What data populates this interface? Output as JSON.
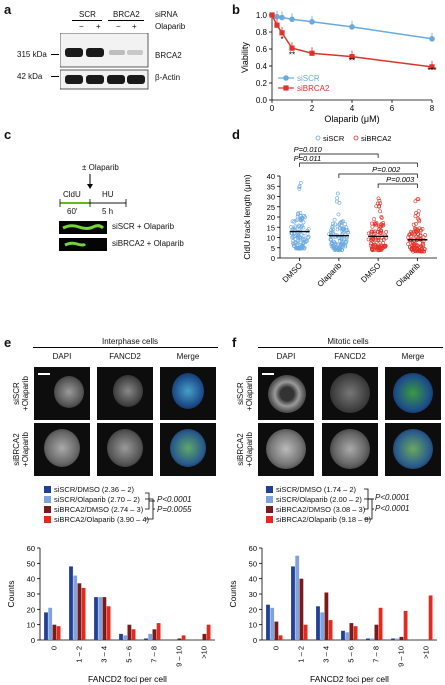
{
  "colors": {
    "siscr": "#6aa9df",
    "sibrca2": "#e0332a",
    "dark_blue": "#233f94",
    "light_blue": "#7fa3dd",
    "dark_red": "#7a1a1a",
    "red": "#e32a1f"
  },
  "panel_a": {
    "letter": "a",
    "col_labels": [
      "SCR",
      "BRCA2"
    ],
    "sirna_label": "siRNA",
    "olaparib_label": "Olaparib",
    "treatment_signs": [
      "−",
      "+",
      "−",
      "+"
    ],
    "size_markers": [
      "315 kDa",
      "42 kDa"
    ],
    "band_labels": [
      "BRCA2",
      "β-Actin"
    ]
  },
  "panel_b": {
    "letter": "b",
    "stars": [
      "*",
      "**",
      "**",
      "***"
    ]
  },
  "panel_c": {
    "letter": "c",
    "olaparib": "± Olaparib",
    "cldu": "CldU",
    "hu": "HU",
    "t1": "60′",
    "t2": "5 h",
    "row1": "siSCR + Olaparib",
    "row2": "siBRCA2 + Olaparib"
  },
  "panel_d": {
    "letter": "d",
    "p_values": [
      "P=0.010",
      "P=0.011",
      "P=0.002",
      "P=0.003"
    ]
  },
  "panel_e": {
    "letter": "e",
    "section_title": "Interphase cells",
    "col_headers": [
      "DAPI",
      "FANCD2",
      "Merge"
    ],
    "row_labels": [
      "siSCR\n+Olaparib",
      "siBRCA2\n+Olaparib"
    ],
    "legend": [
      "siSCR/DMSO (2.36 – 2)",
      "siSCR/Olaparib (2.70 – 2)",
      "siBRCA2/DMSO (2.74 – 3)",
      "siBRCA2/Olaparib (3.90 – 4)"
    ],
    "p1": "P<0.0001",
    "p2": "P=0.0055"
  },
  "panel_f": {
    "letter": "f",
    "section_title": "Mitotic cells",
    "col_headers": [
      "DAPI",
      "FANCD2",
      "Merge"
    ],
    "row_labels": [
      "siSCR\n+Olaparib",
      "siBRCA2\n+Olaparib"
    ],
    "legend": [
      "siSCR/DMSO (1.74 – 2)",
      "siSCR/Olaparib (2.00 – 2)",
      "siBRCA2/DMSO (3.08 – 3)",
      "siBRCA2/Olaparib (9.18 – 8)"
    ],
    "p1": "P<0.0001",
    "p2": "P<0.0001"
  },
  "chart_data": [
    {
      "type": "line",
      "xlabel": "Olaparib (μM)",
      "ylabel": "Viability",
      "xlim": [
        0,
        8
      ],
      "ylim": [
        0,
        1.0
      ],
      "xticks": [
        0,
        2,
        4,
        6,
        8
      ],
      "yticks": [
        0,
        0.2,
        0.4,
        0.6,
        0.8,
        1.0
      ],
      "series": [
        {
          "name": "siSCR",
          "x": [
            0,
            0.25,
            0.5,
            1,
            2,
            4,
            8
          ],
          "y": [
            1.0,
            0.98,
            0.97,
            0.95,
            0.92,
            0.86,
            0.72
          ]
        },
        {
          "name": "siBRCA2",
          "x": [
            0,
            0.25,
            0.5,
            1,
            2,
            4,
            8
          ],
          "y": [
            1.0,
            0.88,
            0.79,
            0.61,
            0.55,
            0.51,
            0.39
          ]
        }
      ],
      "legend_position": "bottom-left"
    },
    {
      "type": "scatter",
      "ylabel": "CldU track length (μm)",
      "ylim": [
        0,
        40
      ],
      "yticks": [
        0,
        5,
        10,
        15,
        20,
        25,
        30,
        35,
        40
      ],
      "categories": [
        "DMSO",
        "Olaparib",
        "DMSO",
        "Olaparib"
      ],
      "series": [
        {
          "name": "siSCR",
          "categories": [
            0,
            1
          ]
        },
        {
          "name": "siBRCA2",
          "categories": [
            2,
            3
          ]
        }
      ],
      "medians": [
        12.9,
        10.9,
        10.6,
        8.9
      ],
      "legend_position": "top"
    },
    {
      "type": "bar",
      "xlabel": "FANCD2 foci per cell",
      "ylabel": "Counts",
      "ylim": [
        0,
        60
      ],
      "yticks": [
        0,
        10,
        20,
        30,
        40,
        50,
        60
      ],
      "categories": [
        "0",
        "1 – 2",
        "3 – 4",
        "5 – 6",
        "7 – 8",
        "9 – 10",
        ">10"
      ],
      "series": [
        {
          "name": "siSCR/DMSO",
          "values": [
            18,
            48,
            28,
            4,
            1,
            0,
            0
          ]
        },
        {
          "name": "siSCR/Olaparib",
          "values": [
            21,
            42,
            28,
            3,
            4,
            0,
            0
          ]
        },
        {
          "name": "siBRCA2/DMSO",
          "values": [
            10,
            37,
            28,
            10,
            7,
            1,
            4
          ]
        },
        {
          "name": "siBRCA2/Olaparib",
          "values": [
            9,
            34,
            22,
            7,
            11,
            3,
            10
          ]
        }
      ]
    },
    {
      "type": "bar",
      "xlabel": "FANCD2 foci per cell",
      "ylabel": "Counts",
      "ylim": [
        0,
        60
      ],
      "yticks": [
        0,
        10,
        20,
        30,
        40,
        50,
        60
      ],
      "categories": [
        "0",
        "1 – 2",
        "3 – 4",
        "5 – 6",
        "7 – 8",
        "9 – 10",
        ">10"
      ],
      "series": [
        {
          "name": "siSCR/DMSO",
          "values": [
            23,
            48,
            22,
            6,
            1,
            1,
            0
          ]
        },
        {
          "name": "siSCR/Olaparib",
          "values": [
            21,
            55,
            18,
            5,
            1,
            1,
            0
          ]
        },
        {
          "name": "siBRCA2/DMSO",
          "values": [
            12,
            40,
            31,
            11,
            10,
            2,
            0
          ]
        },
        {
          "name": "siBRCA2/Olaparib",
          "values": [
            3,
            10,
            13,
            9,
            21,
            19,
            29
          ]
        }
      ]
    }
  ]
}
